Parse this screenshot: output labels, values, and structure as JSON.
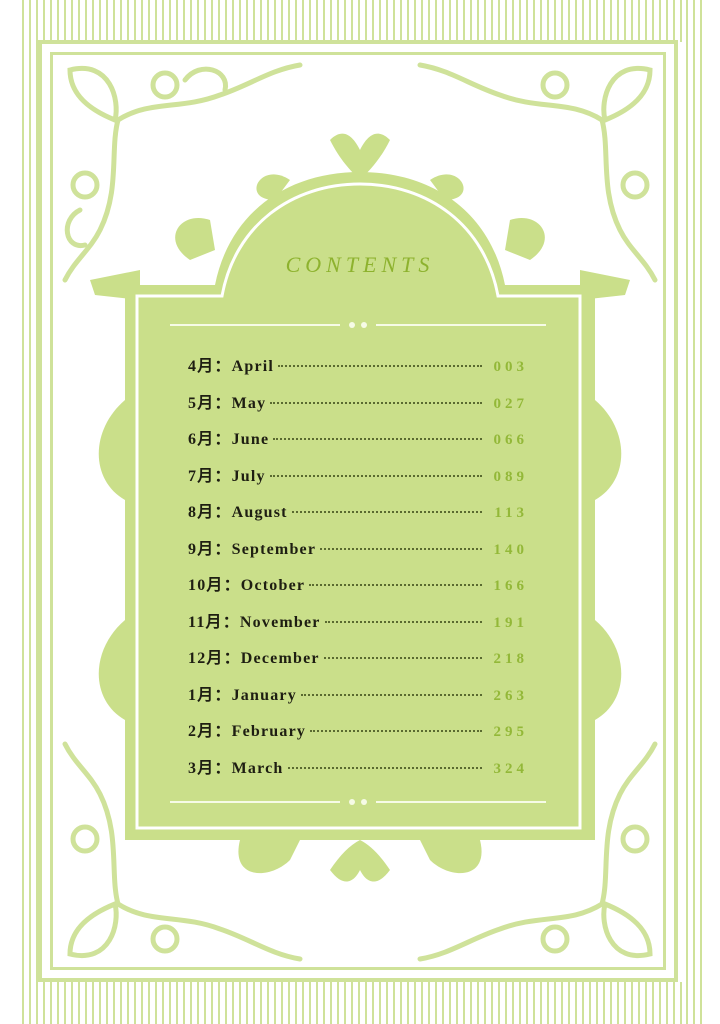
{
  "title": "CONTENTS",
  "colors": {
    "frame": "#cfe29a",
    "panel": "#cadf8a",
    "title": "#8db22e",
    "page_number": "#93b838",
    "text": "#1e1e12"
  },
  "entries": [
    {
      "label": "4月：April",
      "page": "003"
    },
    {
      "label": "5月：May",
      "page": "027"
    },
    {
      "label": "6月：June",
      "page": "066"
    },
    {
      "label": "7月：July",
      "page": "089"
    },
    {
      "label": "8月：August",
      "page": "113"
    },
    {
      "label": "9月：September",
      "page": "140"
    },
    {
      "label": "10月：October",
      "page": "166"
    },
    {
      "label": "11月：November",
      "page": "191"
    },
    {
      "label": "12月：December",
      "page": "218"
    },
    {
      "label": "1月：January",
      "page": "263"
    },
    {
      "label": "2月：February",
      "page": "295"
    },
    {
      "label": "3月：March",
      "page": "324"
    }
  ]
}
